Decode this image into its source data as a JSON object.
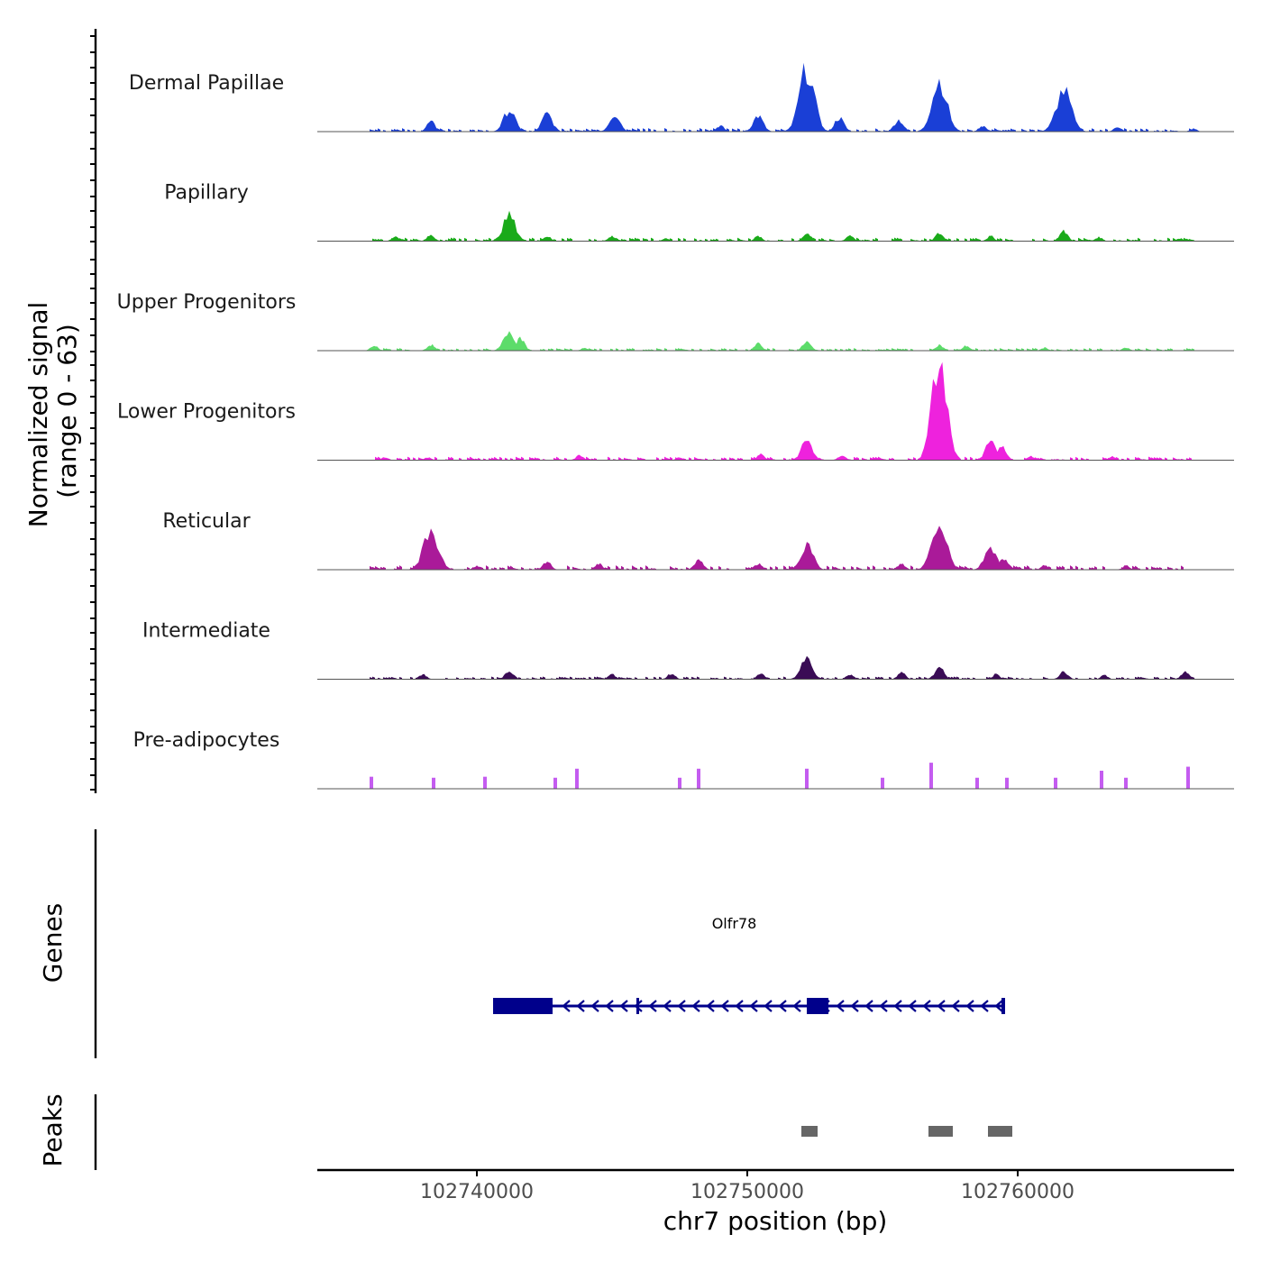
{
  "chart_data": {
    "type": "area",
    "title": "",
    "chromosome": "chr7",
    "xlabel": "chr7 position (bp)",
    "ylabel": "Normalized signal",
    "ylabel_range": "(range 0 - 63)",
    "ylim": [
      0,
      63
    ],
    "xlim": [
      102734100,
      102768000
    ],
    "x_ticks": [
      {
        "value": 102740000,
        "label": "102740000"
      },
      {
        "value": 102750000,
        "label": "102750000"
      },
      {
        "value": 102760000,
        "label": "102760000"
      }
    ],
    "tracks": [
      {
        "name": "Dermal Papillae",
        "color": "#1a3fd6",
        "baseline": 3,
        "peaks": [
          [
            102738300,
            10
          ],
          [
            102741200,
            22
          ],
          [
            102742600,
            18
          ],
          [
            102745100,
            18
          ],
          [
            102749000,
            6
          ],
          [
            102750400,
            16
          ],
          [
            102752200,
            63
          ],
          [
            102753400,
            14
          ],
          [
            102755600,
            12
          ],
          [
            102757100,
            52
          ],
          [
            102758700,
            6
          ],
          [
            102761700,
            42
          ],
          [
            102763700,
            5
          ],
          [
            102766500,
            3
          ]
        ]
      },
      {
        "name": "Papillary",
        "color": "#1aaa1a",
        "baseline": 3,
        "peaks": [
          [
            102737000,
            5
          ],
          [
            102738300,
            6
          ],
          [
            102741200,
            26
          ],
          [
            102742600,
            5
          ],
          [
            102745000,
            5
          ],
          [
            102747000,
            3
          ],
          [
            102750400,
            5
          ],
          [
            102752200,
            8
          ],
          [
            102753800,
            6
          ],
          [
            102757100,
            8
          ],
          [
            102759000,
            5
          ],
          [
            102761700,
            10
          ],
          [
            102763000,
            4
          ],
          [
            102766000,
            3
          ]
        ]
      },
      {
        "name": "Upper Progenitors",
        "color": "#5cdc6a",
        "baseline": 2,
        "peaks": [
          [
            102736200,
            5
          ],
          [
            102738300,
            6
          ],
          [
            102741200,
            20
          ],
          [
            102741600,
            12
          ],
          [
            102744000,
            3
          ],
          [
            102750400,
            7
          ],
          [
            102752200,
            9
          ],
          [
            102757100,
            6
          ],
          [
            102758100,
            5
          ],
          [
            102761000,
            3
          ],
          [
            102764000,
            3
          ]
        ]
      },
      {
        "name": "Lower Progenitors",
        "color": "#ee22dd",
        "baseline": 3,
        "peaks": [
          [
            102736600,
            3
          ],
          [
            102738200,
            3
          ],
          [
            102743800,
            5
          ],
          [
            102747500,
            3
          ],
          [
            102750500,
            6
          ],
          [
            102752200,
            20
          ],
          [
            102753500,
            5
          ],
          [
            102757100,
            100
          ],
          [
            102759000,
            18
          ],
          [
            102759400,
            13
          ],
          [
            102760500,
            4
          ],
          [
            102763500,
            4
          ]
        ]
      },
      {
        "name": "Reticular",
        "color": "#aa1a99",
        "baseline": 4,
        "peaks": [
          [
            102738300,
            40
          ],
          [
            102740000,
            4
          ],
          [
            102742600,
            8
          ],
          [
            102744500,
            6
          ],
          [
            102748200,
            10
          ],
          [
            102750400,
            6
          ],
          [
            102752200,
            26
          ],
          [
            102755700,
            6
          ],
          [
            102757100,
            50
          ],
          [
            102759000,
            24
          ],
          [
            102759500,
            12
          ],
          [
            102761000,
            5
          ],
          [
            102764000,
            4
          ]
        ]
      },
      {
        "name": "Intermediate",
        "color": "#3a0c55",
        "baseline": 2,
        "peaks": [
          [
            102738000,
            5
          ],
          [
            102741200,
            9
          ],
          [
            102745000,
            5
          ],
          [
            102747200,
            6
          ],
          [
            102750500,
            6
          ],
          [
            102752200,
            22
          ],
          [
            102753800,
            5
          ],
          [
            102755700,
            7
          ],
          [
            102757100,
            12
          ],
          [
            102759200,
            5
          ],
          [
            102761700,
            8
          ],
          [
            102763200,
            4
          ],
          [
            102766200,
            8
          ]
        ]
      },
      {
        "name": "Pre-adipocytes",
        "color": "#c45cf0",
        "baseline": 0,
        "peaks": [
          [
            102736100,
            12
          ],
          [
            102738400,
            11
          ],
          [
            102740300,
            12
          ],
          [
            102742900,
            11
          ],
          [
            102743700,
            20
          ],
          [
            102747500,
            11
          ],
          [
            102748200,
            20
          ],
          [
            102752200,
            20
          ],
          [
            102755000,
            11
          ],
          [
            102756800,
            26
          ],
          [
            102758500,
            11
          ],
          [
            102759600,
            11
          ],
          [
            102761400,
            11
          ],
          [
            102763100,
            18
          ],
          [
            102764000,
            11
          ],
          [
            102766300,
            22
          ]
        ]
      }
    ],
    "genes": [
      {
        "name": "Olfr78",
        "strand": "-",
        "start": 102740600,
        "end": 102759500,
        "exons": [
          [
            102740600,
            102742800
          ],
          [
            102745900,
            102746000
          ],
          [
            102752200,
            102753000
          ]
        ]
      }
    ],
    "gene_track_title": "Genes",
    "peaks_track_title": "Peaks",
    "peak_regions": [
      [
        102752000,
        102752600
      ],
      [
        102756700,
        102757600
      ],
      [
        102758900,
        102759800
      ]
    ],
    "colors": {
      "gene": "#00008b",
      "peak": "#666666",
      "axis": "#000000",
      "baseline": "#555555"
    }
  }
}
